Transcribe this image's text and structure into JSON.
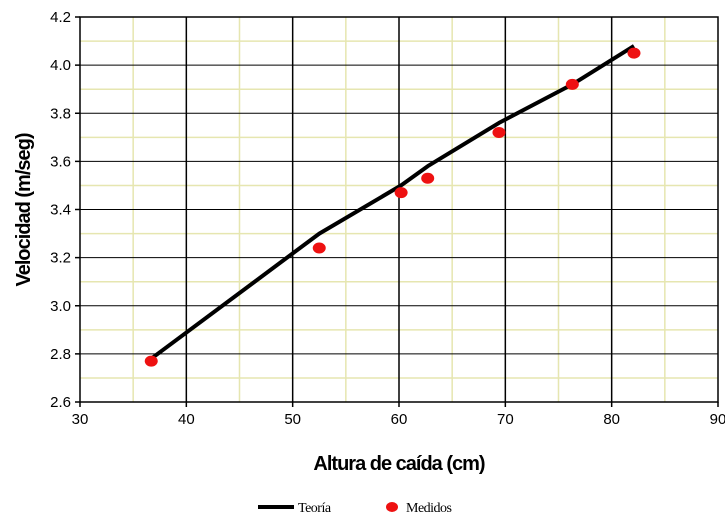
{
  "chart_data": {
    "type": "scatter",
    "title": "",
    "xlabel": "Altura de caída (cm)",
    "ylabel": "Velocidad (m/seg)",
    "xlim": [
      30,
      90
    ],
    "ylim": [
      2.6,
      4.2
    ],
    "x_ticks": [
      "30",
      "40",
      "50",
      "60",
      "70",
      "80",
      "90"
    ],
    "y_ticks": [
      "2.6",
      "2.8",
      "3.0",
      "3.2",
      "3.4",
      "3.6",
      "3.8",
      "4.0",
      "4.2"
    ],
    "grid": true,
    "legend_position": "bottom",
    "series": [
      {
        "name": "Teoría",
        "kind": "line",
        "color": "#000000",
        "points": [
          [
            36.7,
            2.78
          ],
          [
            52.5,
            3.3
          ],
          [
            60.2,
            3.5
          ],
          [
            62.7,
            3.58
          ],
          [
            69.4,
            3.76
          ],
          [
            76.3,
            3.92
          ],
          [
            82.1,
            4.08
          ]
        ]
      },
      {
        "name": "Medidos",
        "kind": "marker",
        "color": "#ee1111",
        "points": [
          [
            36.7,
            2.77
          ],
          [
            52.5,
            3.24
          ],
          [
            60.2,
            3.47
          ],
          [
            62.7,
            3.53
          ],
          [
            69.4,
            3.72
          ],
          [
            76.3,
            3.92
          ],
          [
            82.1,
            4.05
          ]
        ]
      }
    ]
  }
}
